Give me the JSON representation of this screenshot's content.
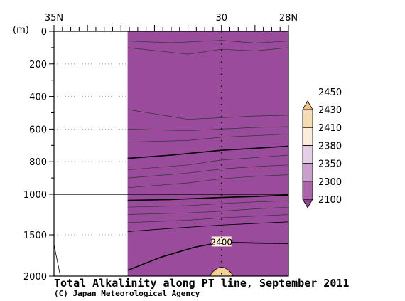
{
  "chart_data": {
    "type": "heatmap",
    "title": "Total Alkalinity along PT line, September 2011",
    "credit": "(C) Japan Meteorological Agency",
    "ylabel": "(m)",
    "x_tick_labels": [
      {
        "lat": 35,
        "label": "35N"
      },
      {
        "lat": 30,
        "label": "30"
      },
      {
        "lat": 28,
        "label": "28N"
      }
    ],
    "x_range": [
      35,
      28
    ],
    "y_tick_labels": [
      {
        "depth": 0,
        "label": "0"
      },
      {
        "depth": 200,
        "label": "200"
      },
      {
        "depth": 400,
        "label": "400"
      },
      {
        "depth": 600,
        "label": "600"
      },
      {
        "depth": 800,
        "label": "800"
      },
      {
        "depth": 1000,
        "label": "1000"
      },
      {
        "depth": 1500,
        "label": "1500"
      },
      {
        "depth": 2000,
        "label": "2000"
      }
    ],
    "y_scale_note": "linear 0-1000 m, compressed 1000-2000 m",
    "no_data_until_lat": 32.8,
    "colorbar": {
      "levels": [
        2100,
        2300,
        2350,
        2380,
        2410,
        2430,
        2450
      ],
      "labels": [
        "2100",
        "2300",
        "2350",
        "2380",
        "2410",
        "2430",
        "2450"
      ],
      "colors": [
        "#8e3f8e",
        "#a866a8",
        "#c9a0cc",
        "#e4d0e4",
        "#faeddb",
        "#f6dcb4",
        "#f0c184"
      ]
    },
    "bands": [
      {
        "range": "2100-2300",
        "color": "#9b4b9c",
        "bottom": [
          [
            32.8,
            780
          ],
          [
            31.5,
            760
          ],
          [
            30,
            730
          ],
          [
            29,
            718
          ],
          [
            28,
            705
          ]
        ]
      },
      {
        "range": "2300-2350",
        "color": "#b98cc1",
        "bottom": [
          [
            32.8,
            1075
          ],
          [
            31.5,
            1065
          ],
          [
            30,
            1040
          ],
          [
            29,
            1028
          ],
          [
            28,
            1010
          ]
        ]
      },
      {
        "range": "2350-2380",
        "color": "#e3cfe5",
        "bottom": [
          [
            32.8,
            1460
          ],
          [
            31.5,
            1420
          ],
          [
            30,
            1380
          ],
          [
            29,
            1360
          ],
          [
            28,
            1340
          ]
        ]
      },
      {
        "range": "2380-2410",
        "color": "#fbecd6",
        "bottom": [
          [
            32.8,
            2000
          ],
          [
            28,
            2000
          ]
        ]
      }
    ],
    "labeled_contour": {
      "value": 2400,
      "label": "2400",
      "points": [
        [
          32.8,
          1930
        ],
        [
          31.8,
          1770
        ],
        [
          30.8,
          1650
        ],
        [
          30,
          1590
        ],
        [
          29,
          1600
        ],
        [
          28,
          1605
        ]
      ]
    },
    "patch_2430": {
      "label": "2430",
      "center_lat": 30,
      "depth_from": 1890,
      "depth_to": 2000
    },
    "station_latitudes": [
      30
    ]
  }
}
